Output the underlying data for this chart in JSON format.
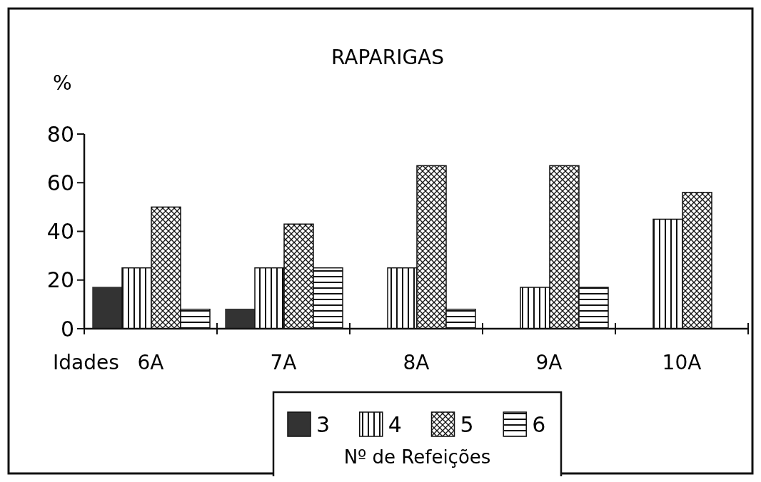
{
  "chart_data": {
    "type": "bar",
    "title": "RAPARIGAS",
    "ylabel": "%",
    "xlabel": "Idades",
    "legend_title": "Nº de Refeições",
    "legend": "bottom",
    "categories": [
      "6A",
      "7A",
      "8A",
      "9A",
      "10A"
    ],
    "ylim": [
      0,
      80
    ],
    "yticks": [
      0,
      20,
      40,
      60,
      80
    ],
    "series": [
      {
        "name": "3",
        "color": "#333333",
        "values": [
          17,
          8,
          0,
          0,
          0
        ]
      },
      {
        "name": "4",
        "color": "#111111",
        "values": [
          25,
          25,
          25,
          17,
          45
        ]
      },
      {
        "name": "5",
        "color": "#111111",
        "values": [
          50,
          43,
          67,
          67,
          56
        ]
      },
      {
        "name": "6",
        "color": "#111111",
        "values": [
          8,
          25,
          8,
          17,
          0
        ]
      }
    ]
  }
}
